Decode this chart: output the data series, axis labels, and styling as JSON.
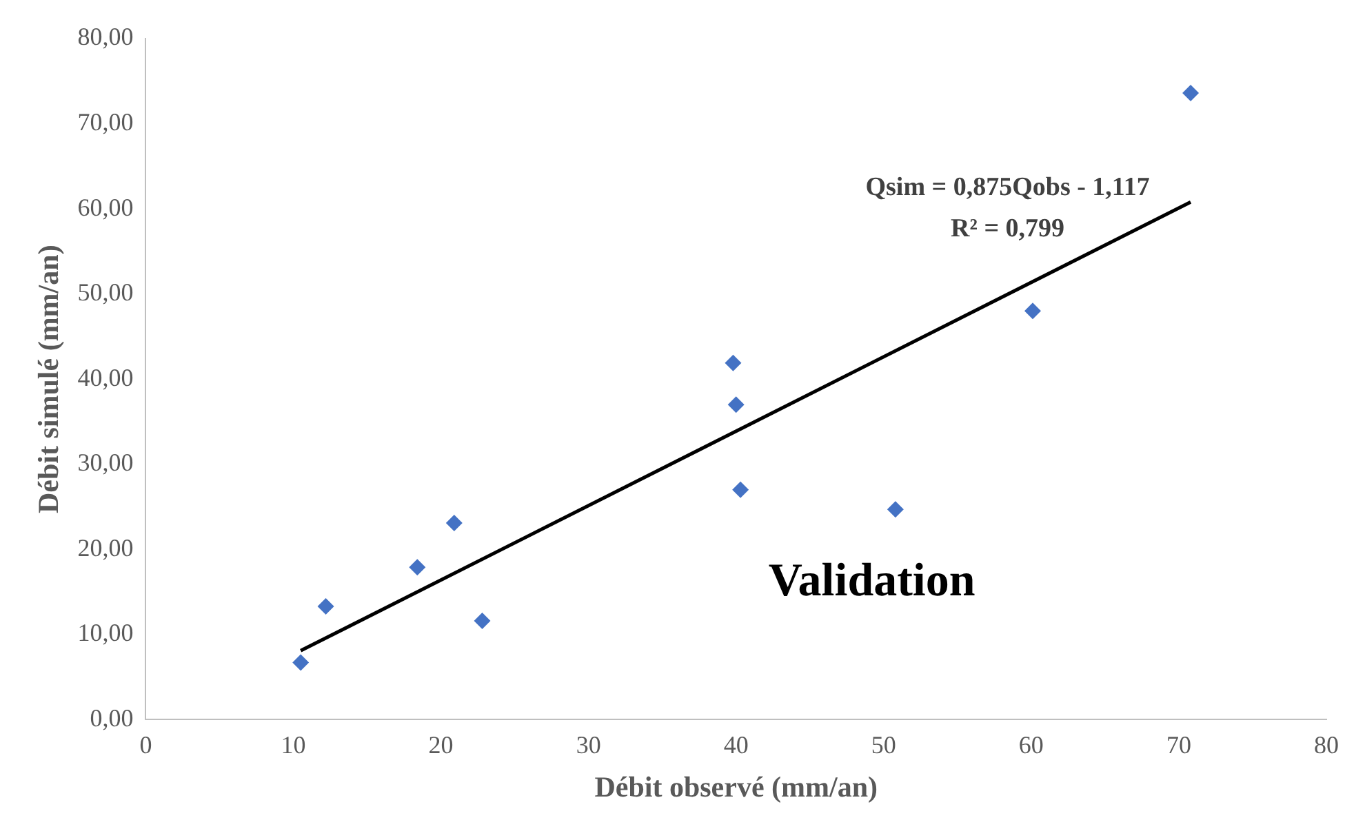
{
  "chart_data": {
    "type": "scatter",
    "xlabel": "Débit observé (mm/an)",
    "ylabel": "Débit simulé (mm/an)",
    "annotations": [
      "Qsim = 0,875Qobs - 1,117",
      "R² = 0,799",
      "Validation"
    ],
    "series": [
      {
        "color": "#4472c4",
        "marker": "diamond",
        "x": [
          10.5,
          12.2,
          18.4,
          20.9,
          22.8,
          39.8,
          40.0,
          40.3,
          50.8,
          60.1,
          70.8
        ],
        "values": [
          6.7,
          13.3,
          17.9,
          23.1,
          11.6,
          41.9,
          37.0,
          27.0,
          24.7,
          48.0,
          73.6
        ]
      },
      {
        "type": "line",
        "color": "#000000",
        "marker": "none",
        "x": [
          10.5,
          70.8
        ],
        "values": [
          8.1,
          60.8
        ]
      }
    ],
    "xlim": [
      0,
      80
    ],
    "xticks": [
      0,
      10,
      20,
      30,
      40,
      50,
      60,
      70,
      80
    ],
    "ylim": [
      0,
      80
    ],
    "yticks": [
      {
        "value": 0,
        "label": "0,00"
      },
      {
        "value": 10,
        "label": "10,00"
      },
      {
        "value": 20,
        "label": "20,00"
      },
      {
        "value": 30,
        "label": "30,00"
      },
      {
        "value": 40,
        "label": "40,00"
      },
      {
        "value": 50,
        "label": "50,00"
      },
      {
        "value": 60,
        "label": "60,00"
      },
      {
        "value": 70,
        "label": "70,00"
      },
      {
        "value": 80,
        "label": "80,00"
      }
    ],
    "grid": false,
    "legend": false
  }
}
